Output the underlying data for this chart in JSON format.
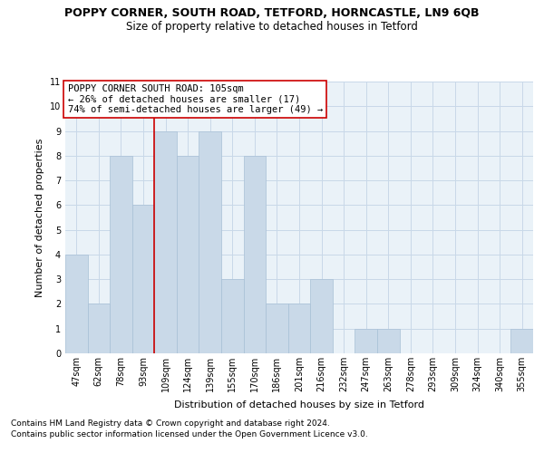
{
  "title": "POPPY CORNER, SOUTH ROAD, TETFORD, HORNCASTLE, LN9 6QB",
  "subtitle": "Size of property relative to detached houses in Tetford",
  "xlabel": "Distribution of detached houses by size in Tetford",
  "ylabel": "Number of detached properties",
  "categories": [
    "47sqm",
    "62sqm",
    "78sqm",
    "93sqm",
    "109sqm",
    "124sqm",
    "139sqm",
    "155sqm",
    "170sqm",
    "186sqm",
    "201sqm",
    "216sqm",
    "232sqm",
    "247sqm",
    "263sqm",
    "278sqm",
    "293sqm",
    "309sqm",
    "324sqm",
    "340sqm",
    "355sqm"
  ],
  "values": [
    4,
    2,
    8,
    6,
    9,
    8,
    9,
    3,
    8,
    2,
    2,
    3,
    0,
    1,
    1,
    0,
    0,
    0,
    0,
    0,
    1
  ],
  "bar_color": "#c9d9e8",
  "bar_edgecolor": "#a8c0d6",
  "vline_index": 3.5,
  "vline_color": "#cc0000",
  "ylim": [
    0,
    11
  ],
  "yticks": [
    0,
    1,
    2,
    3,
    4,
    5,
    6,
    7,
    8,
    9,
    10,
    11
  ],
  "annotation_title": "POPPY CORNER SOUTH ROAD: 105sqm",
  "annotation_line1": "← 26% of detached houses are smaller (17)",
  "annotation_line2": "74% of semi-detached houses are larger (49) →",
  "annotation_box_edgecolor": "#cc0000",
  "grid_color": "#c8d8e8",
  "plot_bg_color": "#eaf2f8",
  "footer1": "Contains HM Land Registry data © Crown copyright and database right 2024.",
  "footer2": "Contains public sector information licensed under the Open Government Licence v3.0.",
  "title_fontsize": 9,
  "subtitle_fontsize": 8.5,
  "xlabel_fontsize": 8,
  "ylabel_fontsize": 8,
  "tick_fontsize": 7,
  "annotation_fontsize": 7.5,
  "footer_fontsize": 6.5
}
